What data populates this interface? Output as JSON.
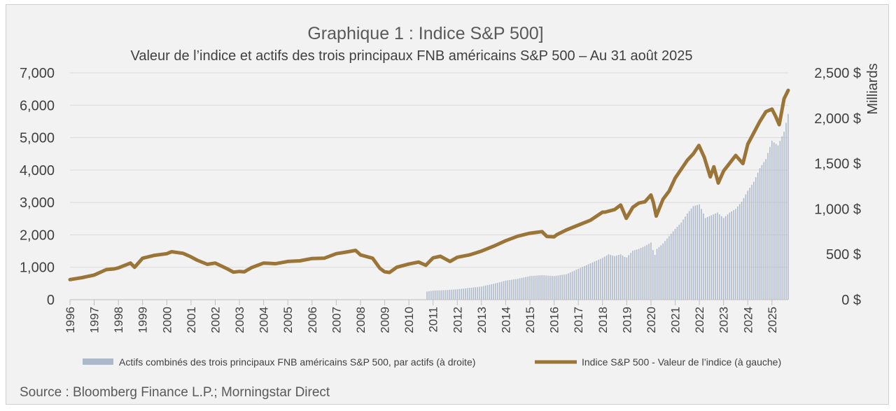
{
  "chart_data": {
    "type": "line",
    "title": "Graphique 1 : Indice S&P 500]",
    "subtitle": "Valeur de l’indice et actifs des trois principaux FNB américains S&P 500 – Au 31 août 2025",
    "y2label": "Milliards",
    "ylim": [
      0,
      7000
    ],
    "y2lim": [
      0,
      2500
    ],
    "y_ticks": [
      "0",
      "1,000",
      "2,000",
      "3,000",
      "4,000",
      "5,000",
      "6,000",
      "7,000"
    ],
    "y2_ticks": [
      "0 $",
      "500 $",
      "1,000 $",
      "1,500 $",
      "2,000 $",
      "2,500 $"
    ],
    "x_ticks": [
      "1996",
      "1997",
      "1998",
      "1999",
      "2000",
      "2001",
      "2002",
      "2003",
      "2004",
      "2005",
      "2006",
      "2007",
      "2008",
      "2009",
      "2010",
      "2011",
      "2012",
      "2013",
      "2014",
      "2015",
      "2016",
      "2017",
      "2018",
      "2019",
      "2020",
      "2021",
      "2022",
      "2023",
      "2024",
      "2025"
    ],
    "xlim": [
      1996.0,
      2025.67
    ],
    "legend_position": "bottom",
    "grid": true,
    "series": [
      {
        "name": "Actifs combinés des trois principaux FNB américains S&P 500, par actifs (à droite)",
        "type": "bar",
        "axis": "right",
        "color": "#adb9ca",
        "x": [
          2010.75,
          2011.0,
          2011.5,
          2012.0,
          2012.5,
          2013.0,
          2013.5,
          2014.0,
          2014.5,
          2015.0,
          2015.5,
          2016.0,
          2016.5,
          2017.0,
          2017.5,
          2018.0,
          2018.25,
          2018.5,
          2018.75,
          2018.98,
          2019.25,
          2019.5,
          2019.75,
          2020.0,
          2020.15,
          2020.25,
          2020.5,
          2020.75,
          2021.0,
          2021.25,
          2021.5,
          2021.75,
          2022.0,
          2022.25,
          2022.5,
          2022.75,
          2023.0,
          2023.25,
          2023.5,
          2023.75,
          2024.0,
          2024.25,
          2024.5,
          2024.75,
          2025.0,
          2025.25,
          2025.5,
          2025.67
        ],
        "values": [
          90,
          100,
          105,
          115,
          130,
          145,
          175,
          210,
          230,
          260,
          270,
          260,
          280,
          340,
          400,
          460,
          500,
          480,
          500,
          460,
          540,
          560,
          590,
          630,
          480,
          560,
          620,
          700,
          780,
          850,
          950,
          1030,
          1050,
          900,
          930,
          960,
          900,
          960,
          1000,
          1080,
          1200,
          1300,
          1450,
          1550,
          1750,
          1700,
          1850,
          2050
        ]
      },
      {
        "name": "Indice S&P 500 - Valeur de l’indice (à gauche)",
        "type": "line",
        "axis": "left",
        "color": "#9a7537",
        "x": [
          1996.0,
          1996.5,
          1997.0,
          1997.5,
          1997.83,
          1998.0,
          1998.5,
          1998.67,
          1999.0,
          1999.5,
          2000.0,
          2000.2,
          2000.67,
          2001.0,
          2001.25,
          2001.67,
          2002.0,
          2002.5,
          2002.75,
          2003.0,
          2003.2,
          2003.5,
          2004.0,
          2004.5,
          2005.0,
          2005.5,
          2006.0,
          2006.5,
          2007.0,
          2007.5,
          2007.8,
          2008.0,
          2008.5,
          2008.8,
          2009.0,
          2009.2,
          2009.5,
          2010.0,
          2010.4,
          2010.7,
          2011.0,
          2011.3,
          2011.7,
          2012.0,
          2012.5,
          2013.0,
          2013.5,
          2014.0,
          2014.5,
          2015.0,
          2015.5,
          2015.7,
          2016.0,
          2016.1,
          2016.5,
          2017.0,
          2017.5,
          2018.0,
          2018.1,
          2018.5,
          2018.75,
          2018.98,
          2019.25,
          2019.5,
          2019.75,
          2020.0,
          2020.1,
          2020.22,
          2020.5,
          2020.75,
          2021.0,
          2021.5,
          2021.75,
          2021.98,
          2022.2,
          2022.45,
          2022.6,
          2022.78,
          2023.0,
          2023.5,
          2023.8,
          2024.0,
          2024.5,
          2024.75,
          2025.0,
          2025.15,
          2025.3,
          2025.5,
          2025.67
        ],
        "values": [
          620,
          680,
          760,
          930,
          950,
          980,
          1130,
          1000,
          1280,
          1370,
          1420,
          1480,
          1430,
          1320,
          1220,
          1090,
          1130,
          950,
          850,
          870,
          860,
          990,
          1130,
          1110,
          1180,
          1200,
          1270,
          1280,
          1420,
          1480,
          1520,
          1380,
          1280,
          970,
          860,
          840,
          1000,
          1100,
          1160,
          1060,
          1290,
          1340,
          1180,
          1310,
          1380,
          1500,
          1650,
          1820,
          1960,
          2050,
          2100,
          1950,
          1940,
          2000,
          2150,
          2300,
          2450,
          2700,
          2700,
          2780,
          2920,
          2510,
          2850,
          2980,
          3020,
          3230,
          3000,
          2580,
          3100,
          3350,
          3750,
          4300,
          4500,
          4760,
          4400,
          3790,
          4100,
          3600,
          3970,
          4450,
          4200,
          4800,
          5500,
          5800,
          5880,
          5660,
          5400,
          6200,
          6460
        ]
      }
    ],
    "source": "Source : Bloomberg Finance L.P.; Morningstar Direct"
  }
}
